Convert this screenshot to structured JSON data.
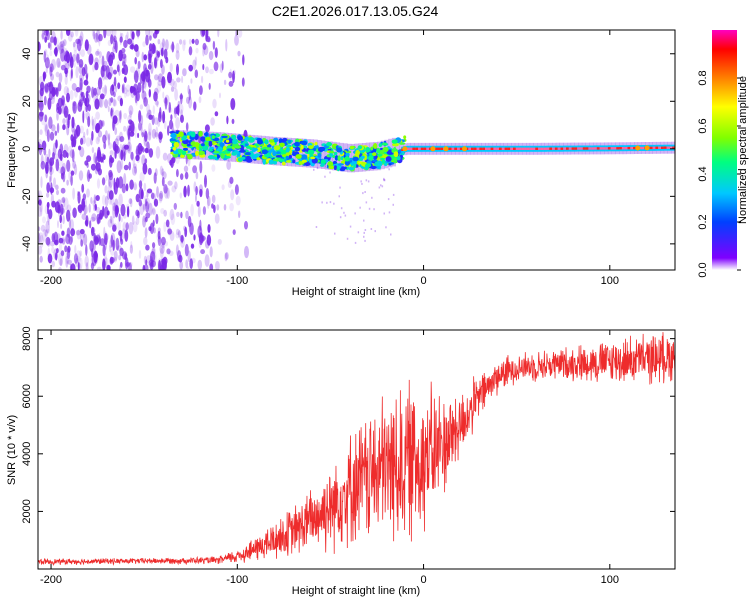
{
  "title": "C2E1.2026.017.13.05.G24",
  "colors": {
    "signal_core": "#ff2020",
    "signal_body": "#20c0ff",
    "noise": "#7a28e6",
    "snr_line": "#ee2c2c",
    "axis": "#000000"
  },
  "chart_data": [
    {
      "type": "heatmap",
      "name": "spectrogram",
      "xlabel": "Height of straight line (km)",
      "ylabel": "Frequency (Hz)",
      "xlim": [
        -207,
        135
      ],
      "ylim": [
        -51,
        50
      ],
      "xticks": [
        -200,
        -100,
        0,
        100
      ],
      "xtick_labels": [
        "-200",
        "-100",
        "0",
        "100"
      ],
      "yticks": [
        -40,
        -20,
        0,
        20,
        40
      ],
      "ytick_labels": [
        "-40",
        "-20",
        "0",
        "20",
        "40"
      ],
      "colorbar": {
        "label": "Normalized spectral amplitude",
        "range": [
          0,
          1
        ],
        "ticks": [
          0,
          0.2,
          0.4,
          0.6,
          0.8
        ],
        "tick_labels": [
          "0.0",
          "0.2",
          "0.4",
          "0.6",
          "0.8"
        ],
        "colormap": [
          "#ffffff",
          "#7f00ff",
          "#0040ff",
          "#00c8ff",
          "#00ff80",
          "#80ff00",
          "#ffff00",
          "#ff8000",
          "#ff0000",
          "#ff00c0"
        ]
      },
      "ridge": {
        "x": [
          -135,
          -110,
          -95,
          -80,
          -60,
          -40,
          -25,
          -10,
          0,
          20,
          60,
          100,
          135
        ],
        "freq": [
          2,
          1,
          0,
          -1,
          -2,
          -4,
          -3,
          0,
          0,
          0,
          0,
          0.2,
          0.5
        ]
      }
    },
    {
      "type": "line",
      "name": "snr",
      "xlabel": "Height of straight line (km)",
      "ylabel": "SNR (10 * v/v)",
      "xlim": [
        -207,
        135
      ],
      "ylim": [
        0,
        8300
      ],
      "xticks": [
        -200,
        -100,
        0,
        100
      ],
      "xtick_labels": [
        "-200",
        "-100",
        "0",
        "100"
      ],
      "yticks": [
        2000,
        4000,
        6000,
        8000
      ],
      "ytick_labels": [
        "2000",
        "4000",
        "6000",
        "8000"
      ],
      "envelope": {
        "x": [
          -207,
          -150,
          -110,
          -100,
          -90,
          -80,
          -70,
          -60,
          -50,
          -40,
          -30,
          -20,
          -10,
          0,
          10,
          20,
          30,
          40,
          50,
          60,
          80,
          100,
          120,
          135
        ],
        "mean": [
          250,
          280,
          300,
          450,
          700,
          1000,
          1300,
          1700,
          2200,
          2800,
          3200,
          3500,
          3700,
          3900,
          4300,
          5000,
          6000,
          6700,
          7000,
          7050,
          7150,
          7200,
          7300,
          7400
        ],
        "spread": [
          120,
          120,
          150,
          300,
          500,
          800,
          1000,
          1300,
          1800,
          2200,
          2600,
          3000,
          3300,
          3000,
          2200,
          1400,
          900,
          700,
          600,
          600,
          700,
          900,
          1000,
          1000
        ]
      }
    }
  ]
}
